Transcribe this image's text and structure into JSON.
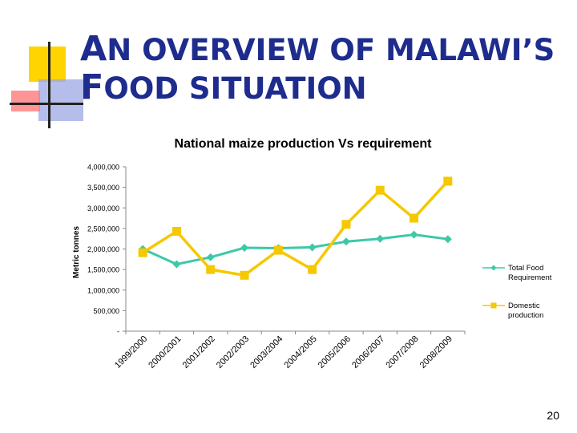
{
  "slide": {
    "title_line1": "AN OVERVIEW OF MALAWI’S",
    "title_line2": "FOOD SITUATION",
    "page_number": "20"
  },
  "chart_data": {
    "type": "line",
    "title": "National maize production Vs requirement",
    "xlabel": "",
    "ylabel": "Metric tonnes",
    "categories": [
      "1999/2000",
      "2000/2001",
      "2001/2002",
      "2002/2003",
      "2003/2004",
      "2004/2005",
      "2005/2006",
      "2006/2007",
      "2007/2008",
      "2008/2009"
    ],
    "ylim": [
      0,
      4000000
    ],
    "yticks": [
      0,
      500000,
      1000000,
      1500000,
      2000000,
      2500000,
      3000000,
      3500000,
      4000000
    ],
    "ytick_labels": [
      "-",
      "500,000",
      "1,000,000",
      "1,500,000",
      "2,000,000",
      "2,500,000",
      "3,000,000",
      "3,500,000",
      "4,000,000"
    ],
    "grid": false,
    "legend_position": "right",
    "series": [
      {
        "name": "Total Food Requirement",
        "color": "#3ec8a8",
        "marker": "diamond",
        "values": [
          2000000,
          1630000,
          1800000,
          2030000,
          2020000,
          2040000,
          2180000,
          2250000,
          2350000,
          2240000
        ]
      },
      {
        "name": "Domestic production",
        "color": "#f5c800",
        "marker": "square",
        "values": [
          1910000,
          2430000,
          1500000,
          1360000,
          1970000,
          1500000,
          2600000,
          3430000,
          2750000,
          3650000
        ]
      }
    ]
  }
}
